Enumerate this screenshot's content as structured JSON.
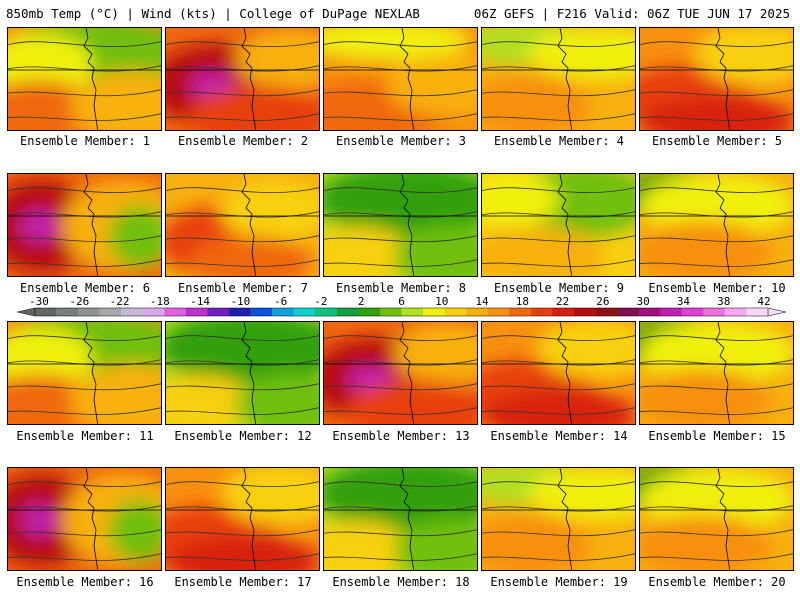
{
  "header": {
    "left": "850mb Temp (°C) | Wind (kts) | College of DuPage NEXLAB",
    "right": "06Z GEFS | F216 Valid: 06Z TUE JUN 17 2025"
  },
  "colorbar": {
    "labels": [
      "-30",
      "-26",
      "-22",
      "-18",
      "-14",
      "-10",
      "-6",
      "-2",
      "2",
      "6",
      "10",
      "14",
      "18",
      "22",
      "26",
      "30",
      "34",
      "38",
      "42"
    ],
    "colors": [
      "#606a60",
      "#78807a",
      "#8e948e",
      "#a8a8b0",
      "#c2b8d8",
      "#d8a8e8",
      "#e060e0",
      "#c030d0",
      "#7020c0",
      "#2020b0",
      "#1050e0",
      "#10a0e0",
      "#10d0d0",
      "#10c080",
      "#10a040",
      "#30a010",
      "#70c010",
      "#b0e020",
      "#f0f010",
      "#f8d010",
      "#f8b010",
      "#f89010",
      "#f06810",
      "#e84010",
      "#d82010",
      "#b81010",
      "#901010",
      "#801050",
      "#a01080",
      "#c020b0",
      "#e040d0",
      "#f070e0",
      "#f8a8f0",
      "#fcd8f8"
    ]
  },
  "panels": [
    {
      "label": "Ensemble Member: 1",
      "scheme": "mixed-cool-north"
    },
    {
      "label": "Ensemble Member: 2",
      "scheme": "hot"
    },
    {
      "label": "Ensemble Member: 3",
      "scheme": "warm-north-low"
    },
    {
      "label": "Ensemble Member: 4",
      "scheme": "mild"
    },
    {
      "label": "Ensemble Member: 5",
      "scheme": "warm"
    },
    {
      "label": "Ensemble Member: 6",
      "scheme": "hot-west"
    },
    {
      "label": "Ensemble Member: 7",
      "scheme": "warm-mixed"
    },
    {
      "label": "Ensemble Member: 8",
      "scheme": "cool-green"
    },
    {
      "label": "Ensemble Member: 9",
      "scheme": "cool-low-east"
    },
    {
      "label": "Ensemble Member: 10",
      "scheme": "mild-warm"
    },
    {
      "label": "Ensemble Member: 11",
      "scheme": "mixed-cool-north"
    },
    {
      "label": "Ensemble Member: 12",
      "scheme": "cool-green"
    },
    {
      "label": "Ensemble Member: 13",
      "scheme": "hot"
    },
    {
      "label": "Ensemble Member: 14",
      "scheme": "warm"
    },
    {
      "label": "Ensemble Member: 15",
      "scheme": "mild-warm"
    },
    {
      "label": "Ensemble Member: 16",
      "scheme": "hot-west"
    },
    {
      "label": "Ensemble Member: 17",
      "scheme": "warm"
    },
    {
      "label": "Ensemble Member: 18",
      "scheme": "cool-green"
    },
    {
      "label": "Ensemble Member: 19",
      "scheme": "mild"
    },
    {
      "label": "Ensemble Member: 20",
      "scheme": "mild-warm"
    }
  ]
}
